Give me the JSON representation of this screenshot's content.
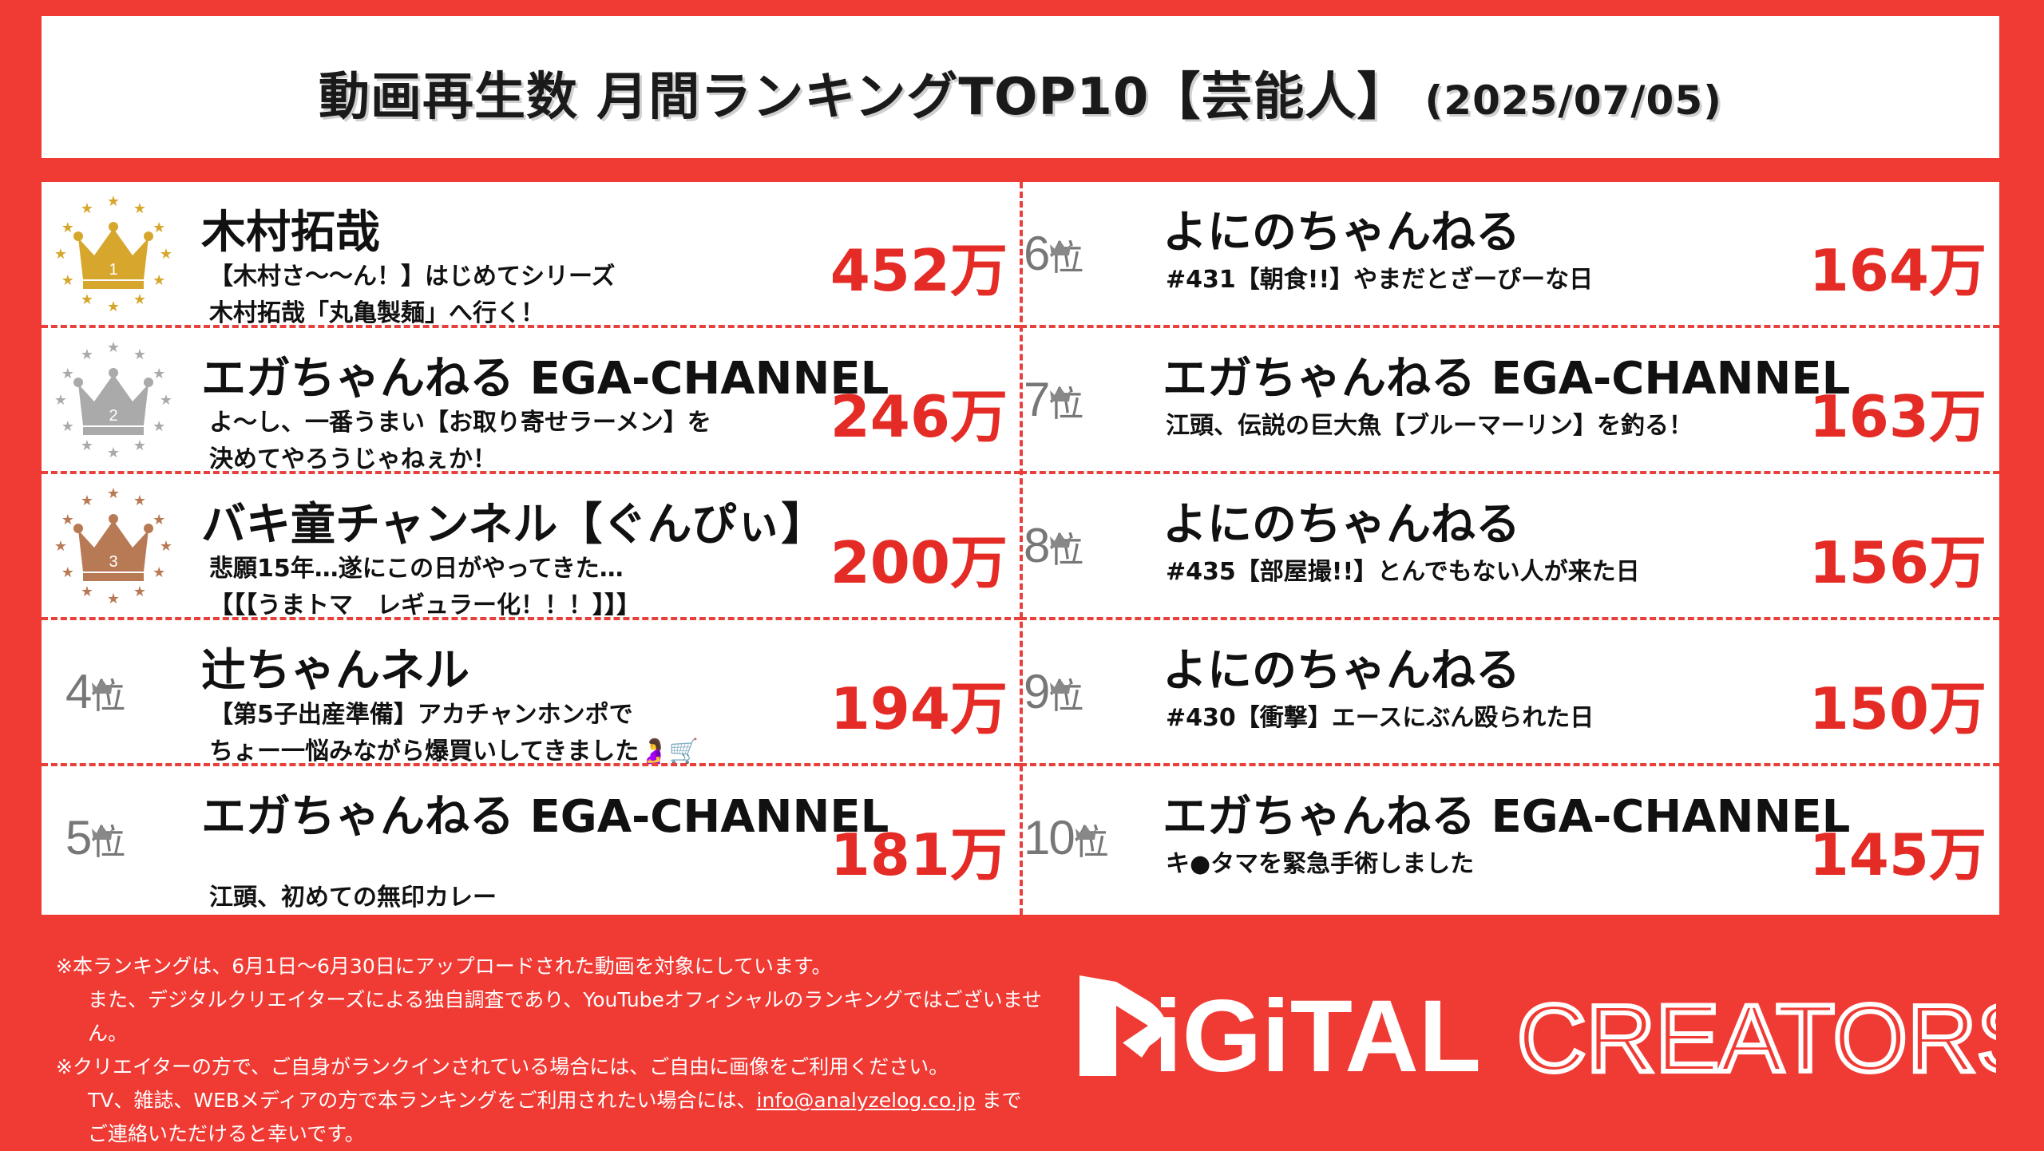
{
  "header": {
    "title": "動画再生数 月間ランキングTOP10",
    "category": "【芸能人】",
    "date": "(2025/07/05)"
  },
  "colors": {
    "background": "#f03a34",
    "views": "#e52b25",
    "underline": "#7ed04b",
    "gold": "#d6a72c",
    "silver": "#aaaaaa",
    "bronze": "#b87a55"
  },
  "rankings": [
    {
      "rank": "1",
      "icon": "gold-crown-icon",
      "name": "木村拓哉",
      "lines": [
        "【木村さ〜〜ん！】はじめてシリーズ",
        "木村拓哉「丸亀製麺」へ行く！"
      ],
      "views": "452万"
    },
    {
      "rank": "2",
      "icon": "silver-crown-icon",
      "name": "エガちゃんねる EGA-CHANNEL",
      "lines": [
        "よ〜し、一番うまい【お取り寄せラーメン】を",
        "決めてやろうじゃねぇか！"
      ],
      "views": "246万"
    },
    {
      "rank": "3",
      "icon": "bronze-crown-icon",
      "name": "バキ童チャンネル【ぐんぴぃ】",
      "lines": [
        "悲願15年…遂にこの日がやってきた…",
        "【【【うまトマ　レギュラー化！！！】】】"
      ],
      "views": "200万"
    },
    {
      "rank": "4",
      "rank_suffix": "位",
      "name": "辻ちゃんネル",
      "lines": [
        "【第5子出産準備】アカチャンホンポで",
        "ちょー一悩みながら爆買いしてきました🤰🛒"
      ],
      "views": "194万"
    },
    {
      "rank": "5",
      "rank_suffix": "位",
      "name": "エガちゃんねる EGA-CHANNEL",
      "lines": [
        "",
        "江頭、初めての無印カレー"
      ],
      "views": "181万"
    },
    {
      "rank": "6",
      "rank_suffix": "位",
      "name": "よにのちゃんねる",
      "lines": [
        "#431【朝食!!】やまだとざーぴーな日"
      ],
      "views": "164万"
    },
    {
      "rank": "7",
      "rank_suffix": "位",
      "name": "エガちゃんねる EGA-CHANNEL",
      "lines": [
        "江頭、伝説の巨大魚【ブルーマーリン】を釣る！"
      ],
      "views": "163万"
    },
    {
      "rank": "8",
      "rank_suffix": "位",
      "name": "よにのちゃんねる",
      "lines": [
        "#435【部屋撮!!】とんでもない人が来た日"
      ],
      "views": "156万"
    },
    {
      "rank": "9",
      "rank_suffix": "位",
      "name": "よにのちゃんねる",
      "lines": [
        "#430【衝撃】エースにぶん殴られた日"
      ],
      "views": "150万"
    },
    {
      "rank": "10",
      "rank_suffix": "位",
      "name": "エガちゃんねる EGA-CHANNEL",
      "lines": [
        "キ●タマを緊急手術しました"
      ],
      "views": "145万"
    }
  ],
  "footer": {
    "line1": "※本ランキングは、6月1日〜6月30日にアップロードされた動画を対象にしています。",
    "line2": "また、デジタルクリエイターズによる独自調査であり、YouTubeオフィシャルのランキングではございません。",
    "line3": "※クリエイターの方で、ご自身がランクインされている場合には、ご自由に画像をご利用ください。",
    "line4_pre": "TV、雑誌、WEBメディアの方で本ランキングをご利用されたい場合には、",
    "email": "info@analyzelog.co.jp",
    "line4_post": " まで",
    "line5": "ご連絡いただけると幸いです。"
  },
  "logo": {
    "word1": "DiGiTAL",
    "word2": "CREATORS"
  }
}
